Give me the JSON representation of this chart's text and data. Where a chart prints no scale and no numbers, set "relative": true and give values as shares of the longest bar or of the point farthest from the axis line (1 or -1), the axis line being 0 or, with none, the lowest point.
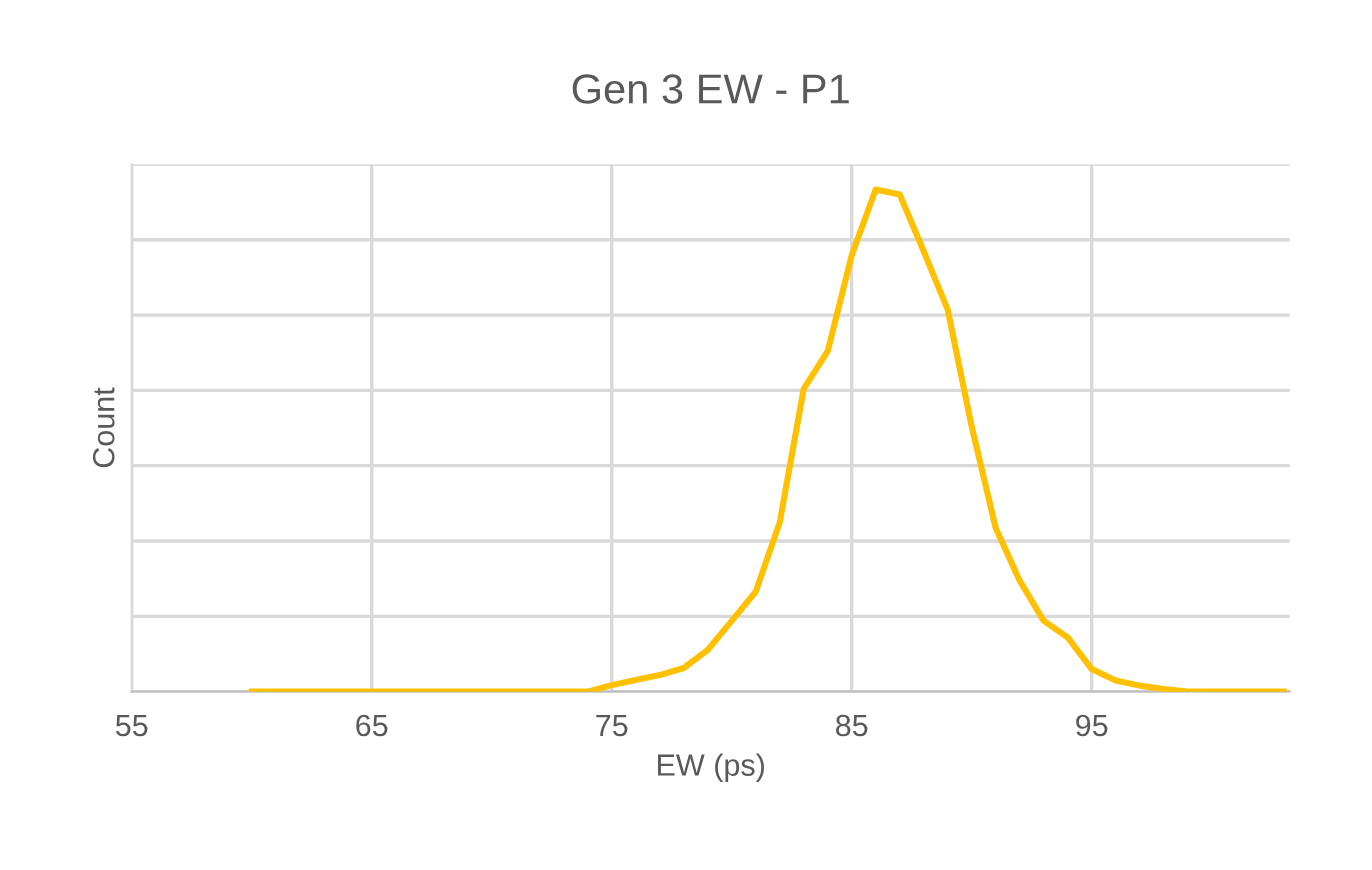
{
  "chart_data": {
    "type": "line",
    "title": "Gen 3 EW - P1",
    "xlabel": "EW (ps)",
    "ylabel": "Count",
    "relative": true,
    "x": [
      60,
      61,
      62,
      63,
      64,
      65,
      66,
      67,
      68,
      69,
      70,
      71,
      72,
      73,
      74,
      75,
      76,
      77,
      78,
      79,
      80,
      81,
      82,
      83,
      84,
      85,
      86,
      87,
      88,
      89,
      90,
      91,
      92,
      93,
      94,
      95,
      96,
      97,
      98,
      99,
      100,
      101,
      102,
      103
    ],
    "series": [
      {
        "color": "#ffc000",
        "values": [
          0,
          0,
          0,
          0,
          0,
          0,
          0,
          0,
          0,
          0,
          0,
          0,
          0,
          0,
          0,
          0.013,
          0.023,
          0.033,
          0.047,
          0.083,
          0.141,
          0.199,
          0.337,
          0.603,
          0.678,
          0.869,
          1,
          0.99,
          0.877,
          0.761,
          0.528,
          0.326,
          0.221,
          0.141,
          0.108,
          0.045,
          0.022,
          0.012,
          0.005,
          0,
          0,
          0,
          0,
          0
        ]
      }
    ],
    "xlim": [
      55,
      103.25
    ],
    "xticks": [
      55,
      65,
      75,
      85,
      95
    ],
    "grid": true,
    "marker": "none",
    "line_style": "solid"
  }
}
